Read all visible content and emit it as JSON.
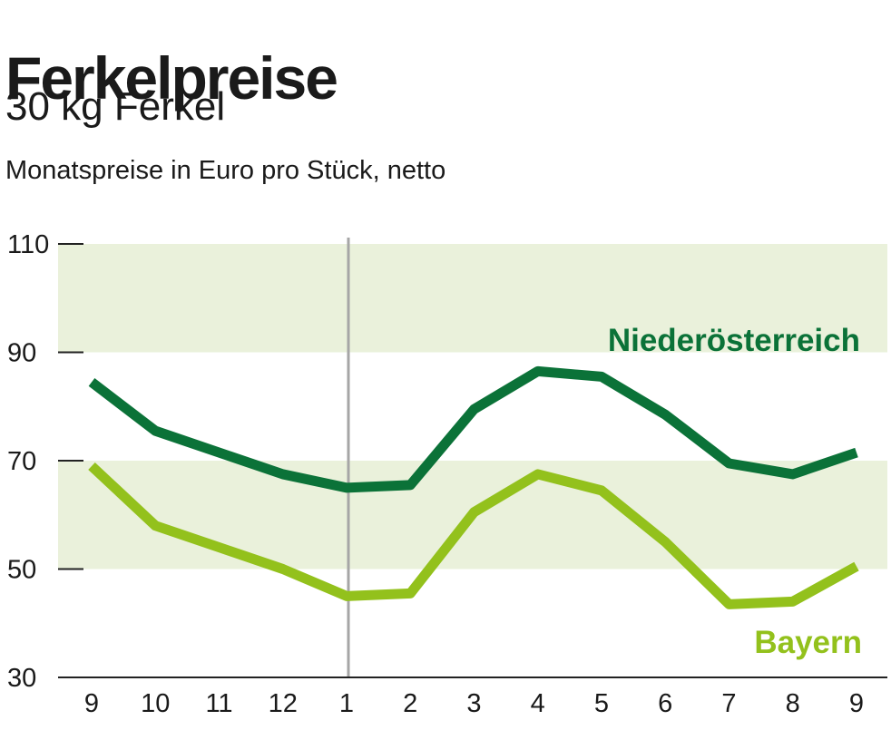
{
  "header": {
    "title": "Ferkelpreise",
    "subtitle": "30 kg Ferkel",
    "note": "Monatspreise in Euro pro Stück, netto"
  },
  "chart_data": {
    "type": "line",
    "title": "Ferkelpreise",
    "subtitle": "30 kg Ferkel",
    "ylabel": "Monatspreise in Euro pro Stück, netto",
    "xlabel": "",
    "categories": [
      "9",
      "10",
      "11",
      "12",
      "1",
      "2",
      "3",
      "4",
      "5",
      "6",
      "7",
      "8",
      "9"
    ],
    "ylim": [
      30,
      110
    ],
    "yticks": [
      30,
      50,
      70,
      90,
      110
    ],
    "grid": false,
    "bands": [
      [
        50,
        70
      ],
      [
        90,
        110
      ]
    ],
    "band_color": "#eaf1db",
    "year_divider_before_index": 4,
    "divider_color": "#a6a6a6",
    "series": [
      {
        "name": "Niederösterreich",
        "color": "#0b7238",
        "values": [
          84.5,
          75.5,
          71.5,
          67.5,
          65,
          65.5,
          79.5,
          86.5,
          85.5,
          78.5,
          69.5,
          67.5,
          71.5
        ]
      },
      {
        "name": "Bayern",
        "color": "#93c11c",
        "values": [
          69,
          58,
          54,
          50,
          45,
          45.5,
          60.5,
          67.5,
          64.5,
          55,
          43.5,
          44,
          50.5
        ]
      }
    ]
  }
}
